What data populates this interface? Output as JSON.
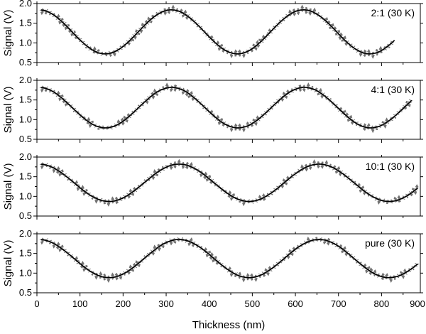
{
  "chart_data": {
    "type": "line",
    "xlabel": "Thickness (nm)",
    "xlim": [
      0,
      890
    ],
    "x_ticks": [
      0,
      100,
      200,
      300,
      400,
      500,
      600,
      700,
      800,
      900
    ],
    "ylabel": "Signal (V)",
    "ylim": [
      0.5,
      2.0
    ],
    "y_ticks": [
      "0.5",
      "1.0",
      "1.5",
      "2.0"
    ],
    "grid": false,
    "panels": [
      {
        "label": "2:1 (30 K)",
        "x_range": [
          10,
          830
        ],
        "mean": 1.28,
        "amplitude": 0.56,
        "period": 307,
        "first_max_x": 5,
        "points": [
          [
            10,
            1.83
          ],
          [
            160,
            0.72
          ],
          [
            305,
            1.84
          ],
          [
            460,
            0.72
          ],
          [
            612,
            1.84
          ],
          [
            768,
            0.7
          ],
          [
            830,
            1.17
          ]
        ]
      },
      {
        "label": "4:1 (30 K)",
        "x_range": [
          10,
          870
        ],
        "mean": 1.305,
        "amplitude": 0.515,
        "period": 308,
        "first_max_x": 5,
        "points": [
          [
            10,
            1.82
          ],
          [
            160,
            0.79
          ],
          [
            315,
            1.82
          ],
          [
            465,
            0.79
          ],
          [
            620,
            1.82
          ],
          [
            775,
            0.79
          ],
          [
            870,
            1.27
          ]
        ]
      },
      {
        "label": "10:1 (30 K)",
        "x_range": [
          10,
          885
        ],
        "mean": 1.345,
        "amplitude": 0.475,
        "period": 325,
        "first_max_x": 5,
        "points": [
          [
            10,
            1.82
          ],
          [
            160,
            0.88
          ],
          [
            320,
            1.82
          ],
          [
            487,
            0.88
          ],
          [
            650,
            1.82
          ],
          [
            815,
            0.88
          ],
          [
            885,
            1.23
          ]
        ]
      },
      {
        "label": "pure (30 K)",
        "x_range": [
          10,
          885
        ],
        "mean": 1.37,
        "amplitude": 0.485,
        "period": 325,
        "first_max_x": 5,
        "points": [
          [
            10,
            1.85
          ],
          [
            165,
            0.89
          ],
          [
            325,
            1.86
          ],
          [
            490,
            0.89
          ],
          [
            650,
            1.85
          ],
          [
            815,
            0.88
          ],
          [
            885,
            1.38
          ]
        ]
      }
    ]
  }
}
